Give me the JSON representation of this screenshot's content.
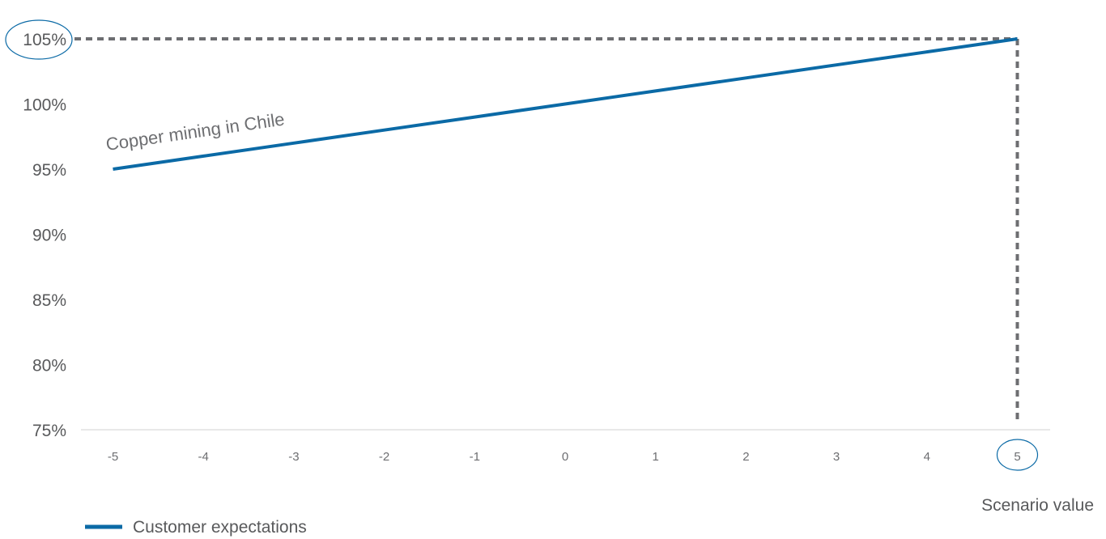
{
  "chart_data": {
    "type": "line",
    "x": [
      -5,
      -4,
      -3,
      -2,
      -1,
      0,
      1,
      2,
      3,
      4,
      5
    ],
    "series": [
      {
        "name": "Customer expectations",
        "color": "#0b6aa6",
        "values": [
          95,
          96,
          97,
          98,
          99,
          100,
          101,
          102,
          103,
          104,
          105
        ]
      }
    ],
    "x_tick_labels": [
      "-5",
      "-4",
      "-3",
      "-2",
      "-1",
      "0",
      "1",
      "2",
      "3",
      "4",
      "5"
    ],
    "y_tick_labels": [
      "75%",
      "80%",
      "85%",
      "90%",
      "95%",
      "100%",
      "105%"
    ],
    "y_ticks": [
      75,
      80,
      85,
      90,
      95,
      100,
      105
    ],
    "xlim": [
      -5.5,
      5.5
    ],
    "ylim": [
      75,
      106.5
    ],
    "xlabel": "Scenario value",
    "ylabel": "",
    "title": "",
    "annotation": "Copper mining in Chile",
    "highlight": {
      "x": 5,
      "y": 105,
      "x_label": "5",
      "y_label": "105%"
    },
    "legend": {
      "position": "bottom-left",
      "label": "Customer expectations"
    },
    "grid": false,
    "colors": {
      "line": "#0b6aa6",
      "guide": "#6d6e71",
      "axis": "#d0d0d0",
      "circle": "#0b6aa6"
    }
  }
}
